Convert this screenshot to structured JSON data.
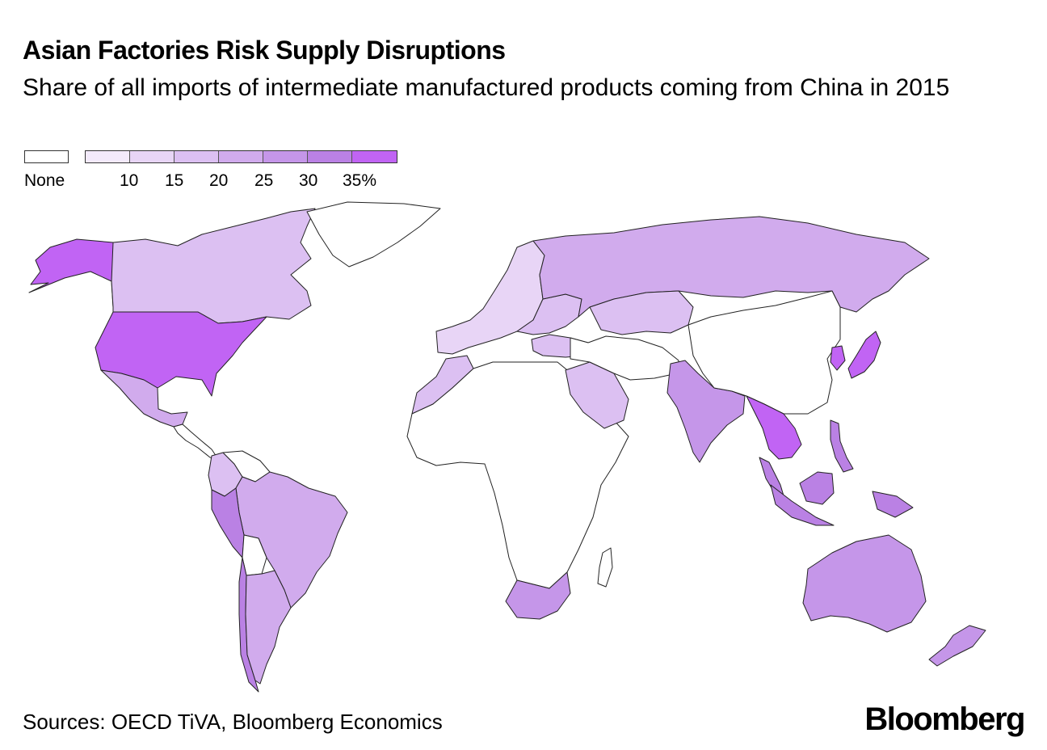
{
  "title": "Asian Factories Risk Supply Disruptions",
  "subtitle": "Share of all imports of intermediate manufactured products coming from China in 2015",
  "legend": {
    "none_label": "None",
    "tick_labels": [
      "10",
      "15",
      "20",
      "25",
      "30",
      "35%"
    ],
    "colors": [
      "#f3eafb",
      "#e8d5f6",
      "#dcc0f2",
      "#d1abed",
      "#c596e9",
      "#ba81e4",
      "#c164f4"
    ],
    "none_color": "#ffffff"
  },
  "regions": [
    {
      "name": "Alaska",
      "bin": 6
    },
    {
      "name": "Canada",
      "bin": 2
    },
    {
      "name": "Greenland",
      "bin": -1
    },
    {
      "name": "United States",
      "bin": 6
    },
    {
      "name": "Mexico",
      "bin": 3
    },
    {
      "name": "Central America",
      "bin": -1
    },
    {
      "name": "Colombia",
      "bin": 2
    },
    {
      "name": "Venezuela",
      "bin": -1
    },
    {
      "name": "Brazil",
      "bin": 3
    },
    {
      "name": "Peru",
      "bin": 5
    },
    {
      "name": "Bolivia",
      "bin": -1
    },
    {
      "name": "Chile",
      "bin": 5
    },
    {
      "name": "Argentina",
      "bin": 3
    },
    {
      "name": "Europe West",
      "bin": 1
    },
    {
      "name": "Europe East",
      "bin": 2
    },
    {
      "name": "Russia",
      "bin": 3
    },
    {
      "name": "Kazakhstan",
      "bin": 2
    },
    {
      "name": "Turkey",
      "bin": 2
    },
    {
      "name": "Morocco",
      "bin": 2
    },
    {
      "name": "Africa",
      "bin": -1
    },
    {
      "name": "South Africa",
      "bin": 4
    },
    {
      "name": "Madagascar",
      "bin": -1
    },
    {
      "name": "Saudi Arabia",
      "bin": 2
    },
    {
      "name": "Middle East",
      "bin": -1
    },
    {
      "name": "India",
      "bin": 4
    },
    {
      "name": "China",
      "bin": -1
    },
    {
      "name": "South Korea",
      "bin": 6
    },
    {
      "name": "Japan",
      "bin": 6
    },
    {
      "name": "Mainland Southeast Asia",
      "bin": 6
    },
    {
      "name": "Malaysia",
      "bin": 5
    },
    {
      "name": "Indonesia",
      "bin": 5
    },
    {
      "name": "Philippines",
      "bin": 5
    },
    {
      "name": "Australia",
      "bin": 4
    },
    {
      "name": "New Zealand",
      "bin": 4
    }
  ],
  "source": "Sources: OECD TiVA, Bloomberg Economics",
  "brand": "Bloomberg"
}
